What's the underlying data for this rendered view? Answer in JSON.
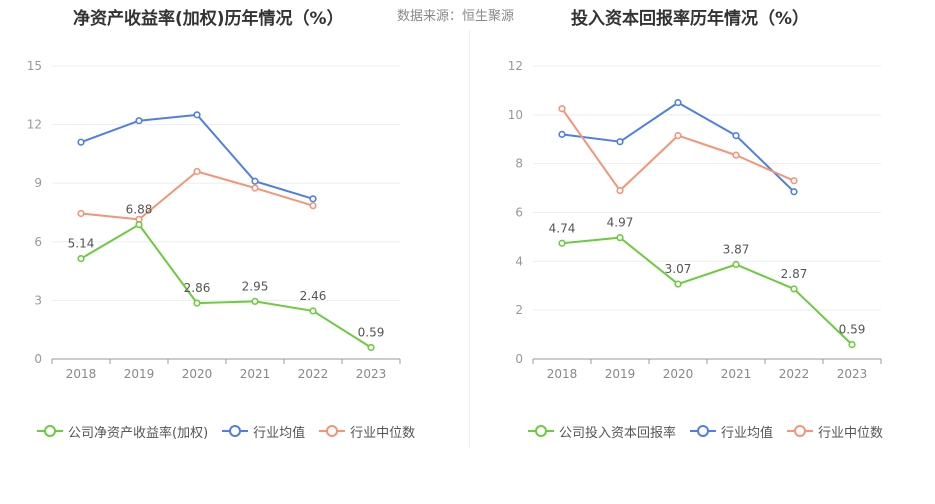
{
  "header": {
    "left_title": "净资产收益率(加权)历年情况（%）",
    "source": "数据来源：恒生聚源",
    "right_title": "投入资本回报率历年情况（%）"
  },
  "colors": {
    "company": "#6ccb3e",
    "industry_avg": "#4f7fe6",
    "industry_median": "#f59476"
  },
  "chart_data": [
    {
      "type": "line",
      "title": "净资产收益率(加权)历年情况（%）",
      "categories": [
        "2018",
        "2019",
        "2020",
        "2021",
        "2022",
        "2023"
      ],
      "ylim": [
        0,
        15
      ],
      "yticks": [
        0,
        3,
        6,
        9,
        12,
        15
      ],
      "grid": true,
      "legend_position": "bottom",
      "series": [
        {
          "name": "公司净资产收益率(加权)",
          "values": [
            5.14,
            6.88,
            2.86,
            2.95,
            2.46,
            0.59
          ],
          "labels": [
            "5.14",
            "6.88",
            "2.86",
            "2.95",
            "2.46",
            "0.59"
          ]
        },
        {
          "name": "行业均值",
          "values": [
            11.1,
            12.2,
            12.5,
            9.1,
            8.2,
            null
          ]
        },
        {
          "name": "行业中位数",
          "values": [
            7.45,
            7.15,
            9.6,
            8.75,
            7.85,
            null
          ]
        }
      ]
    },
    {
      "type": "line",
      "title": "投入资本回报率历年情况（%）",
      "categories": [
        "2018",
        "2019",
        "2020",
        "2021",
        "2022",
        "2023"
      ],
      "ylim": [
        0,
        12
      ],
      "yticks": [
        0,
        2,
        4,
        6,
        8,
        10,
        12
      ],
      "grid": true,
      "legend_position": "bottom",
      "series": [
        {
          "name": "公司投入资本回报率",
          "values": [
            4.74,
            4.97,
            3.07,
            3.87,
            2.87,
            0.59
          ],
          "labels": [
            "4.74",
            "4.97",
            "3.07",
            "3.87",
            "2.87",
            "0.59"
          ]
        },
        {
          "name": "行业均值",
          "values": [
            9.2,
            8.9,
            10.5,
            9.15,
            6.85,
            null
          ]
        },
        {
          "name": "行业中位数",
          "values": [
            10.25,
            6.9,
            9.15,
            8.35,
            7.3,
            null
          ]
        }
      ]
    }
  ]
}
